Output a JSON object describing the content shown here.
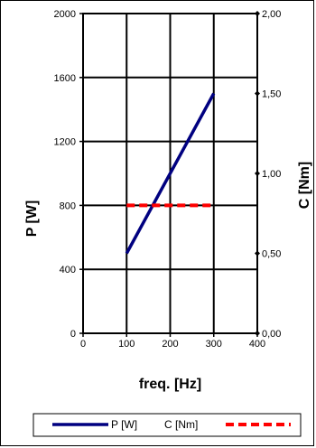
{
  "chart_data": {
    "type": "line",
    "title": "",
    "xlabel": "freq. [Hz]",
    "ylabel": "P  [W]",
    "y2label": "C  [Nm]",
    "xlim": [
      0,
      400
    ],
    "ylim": [
      0,
      2000
    ],
    "y2lim": [
      0,
      2
    ],
    "x_ticks": [
      0,
      100,
      200,
      300,
      400
    ],
    "x_tick_labels": [
      "0",
      "100",
      "200",
      "300",
      "400"
    ],
    "y_ticks": [
      0,
      400,
      800,
      1200,
      1600,
      2000
    ],
    "y_tick_labels": [
      "0",
      "400",
      "800",
      "1200",
      "1600",
      "2000"
    ],
    "y2_ticks": [
      0,
      0.5,
      1,
      1.5,
      2
    ],
    "y2_tick_labels": [
      "0,00",
      "0,50",
      "1,00",
      "1,50",
      "2,00"
    ],
    "grid": true,
    "legend_position": "bottom",
    "series": [
      {
        "name": "P [W]",
        "axis": "left",
        "color": "#000080",
        "style": "solid",
        "x": [
          100,
          300
        ],
        "y": [
          500,
          1500
        ]
      },
      {
        "name": "C [Nm]",
        "axis": "right",
        "color": "#ff0000",
        "style": "dashed",
        "x": [
          100,
          300
        ],
        "y": [
          0.8,
          0.8
        ]
      }
    ]
  }
}
